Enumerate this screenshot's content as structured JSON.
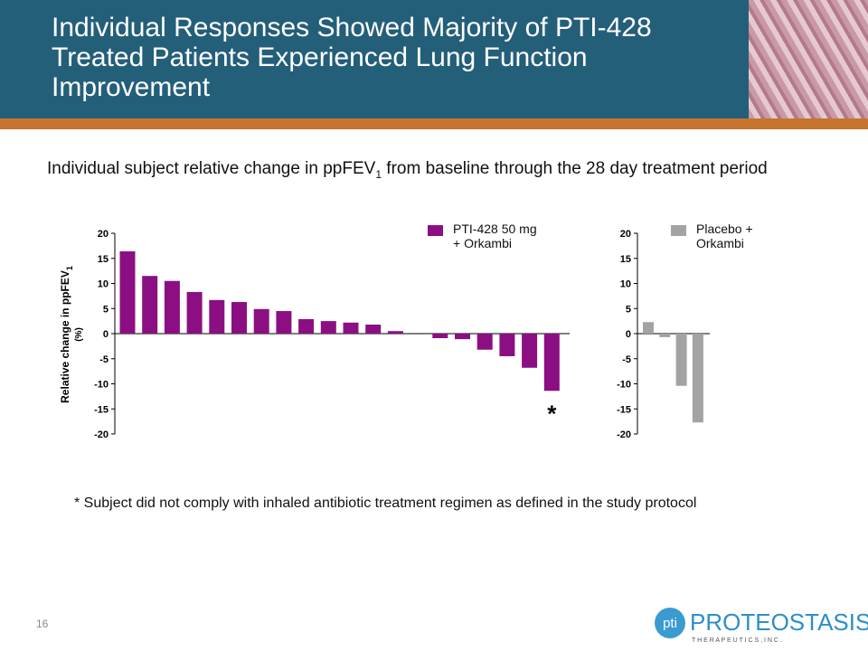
{
  "header": {
    "title": "Individual Responses Showed Majority of PTI-428 Treated Patients Experienced Lung Function Improvement"
  },
  "subtitle": {
    "before": "Individual subject relative change in ppFEV",
    "sub": "1",
    "after": " from baseline through the 28 day treatment period"
  },
  "footnote": "* Subject did not comply with inhaled antibiotic treatment regimen as defined in the study protocol",
  "page_number": "16",
  "logo": {
    "mark": "pti",
    "name": "PROTEOSTASIS",
    "tagline": "T H E R A P E U T I C S ,  I N C ."
  },
  "chart_data": [
    {
      "type": "bar",
      "ylabel": "Relative change in ppFEV",
      "ylabel_sub": "1",
      "ylabel_unit": "(%)",
      "series": [
        {
          "name": "PTI-428 50 mg + Orkambi",
          "color": "#8b0f83",
          "values": [
            16.4,
            11.5,
            10.5,
            8.3,
            6.7,
            6.3,
            4.9,
            4.5,
            2.9,
            2.5,
            2.2,
            1.8,
            0.5,
            0,
            -0.9,
            -1.1,
            -3.2,
            -4.5,
            -6.8,
            -11.4
          ]
        }
      ],
      "annotation": "*",
      "ylim": [
        -20,
        20
      ],
      "yticks": [
        20,
        15,
        10,
        5,
        0,
        -5,
        -10,
        -15,
        -20
      ]
    },
    {
      "type": "bar",
      "series": [
        {
          "name": "Placebo + Orkambi",
          "color": "#a3a3a3",
          "values": [
            2.3,
            -0.7,
            -10.4,
            -17.7
          ]
        }
      ],
      "ylim": [
        -20,
        20
      ],
      "yticks": [
        20,
        15,
        10,
        5,
        0,
        -5,
        -10,
        -15,
        -20
      ]
    }
  ]
}
